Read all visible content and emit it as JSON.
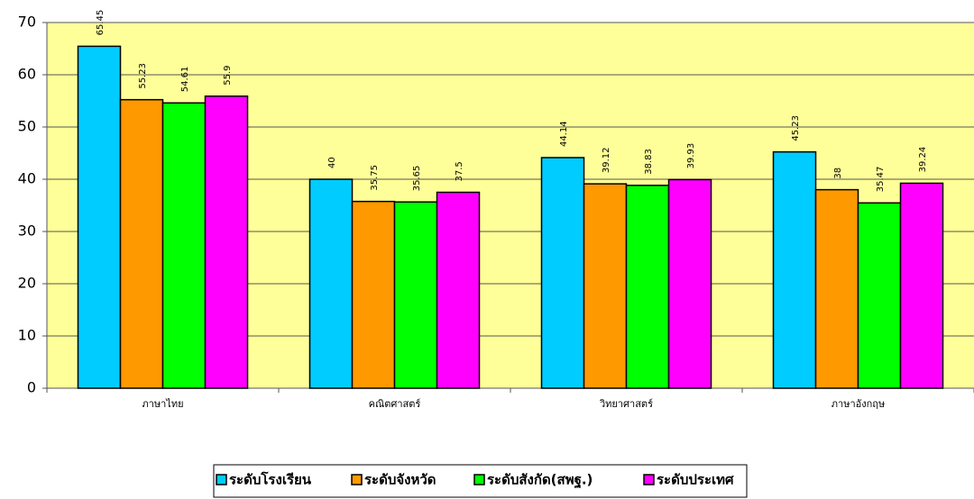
{
  "chart_data": {
    "type": "bar",
    "categories": [
      "ภาษาไทย",
      "คณิตศาสตร์",
      "วิทยาศาสตร์",
      "ภาษาอังกฤษ"
    ],
    "series": [
      {
        "name": "ระดับโรงเรียน",
        "color": "#00ccff",
        "values": [
          65.45,
          40,
          44.14,
          45.23
        ]
      },
      {
        "name": "ระดับจังหวัด",
        "color": "#ff9900",
        "values": [
          55.23,
          35.75,
          39.12,
          38
        ]
      },
      {
        "name": "ระดับสังกัด(สพฐ.)",
        "color": "#00ff00",
        "values": [
          54.61,
          35.65,
          38.83,
          35.47
        ]
      },
      {
        "name": "ระดับประเทศ",
        "color": "#ff00ff",
        "values": [
          55.9,
          37.5,
          39.93,
          39.24
        ]
      }
    ],
    "ylim": [
      0,
      70
    ],
    "yticks": [
      0,
      10,
      20,
      30,
      40,
      50,
      60,
      70
    ],
    "grid": true,
    "legend": "bottom"
  }
}
